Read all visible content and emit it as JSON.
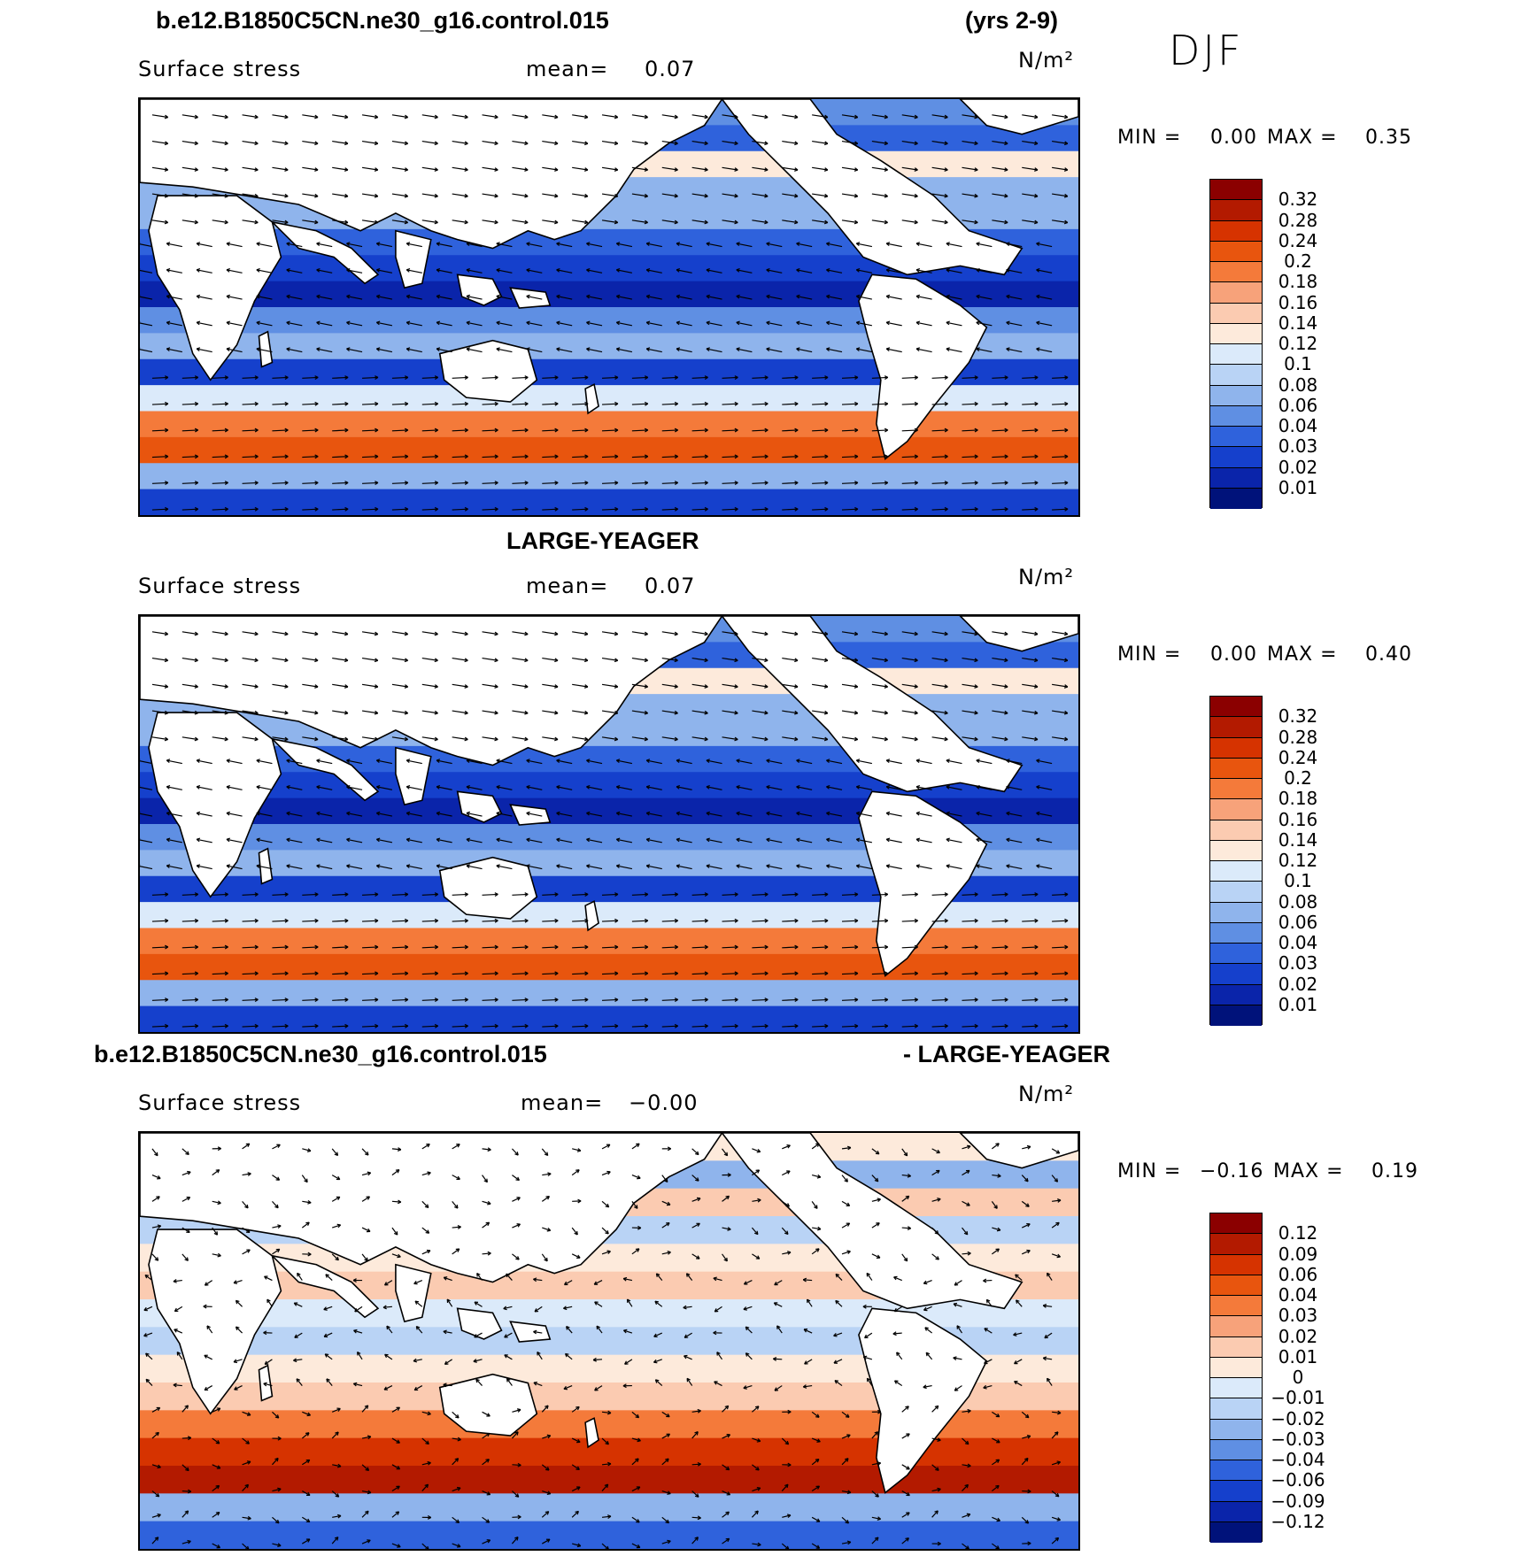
{
  "header": {
    "case_title": "b.e12.B1850C5CN.ne30_g16.control.015",
    "years": "(yrs 2-9)",
    "season": "DJF"
  },
  "panels": [
    {
      "title": "",
      "variable": "Surface stress",
      "mean_label": "mean=",
      "mean_value": "0.07",
      "units": "N/m²",
      "min_label": "MIN =",
      "min_value": "0.00",
      "max_label": "MAX =",
      "max_value": "0.35",
      "colorbar_ticks": [
        "0.32",
        "0.28",
        "0.24",
        "0.2",
        "0.18",
        "0.16",
        "0.14",
        "0.12",
        "0.1",
        "0.08",
        "0.06",
        "0.04",
        "0.03",
        "0.02",
        "0.01"
      ],
      "colorbar_colors": [
        "#8b0000",
        "#b31a00",
        "#d63300",
        "#e8550e",
        "#f47a3a",
        "#f7a27a",
        "#fbcbb1",
        "#fdeadb",
        "#dbeafa",
        "#b9d3f5",
        "#8fb4ec",
        "#5f8fe3",
        "#2f62dc",
        "#1540cc",
        "#0a24aa",
        "#00127a"
      ],
      "palette": "stress"
    },
    {
      "title": "LARGE-YEAGER",
      "variable": "Surface stress",
      "mean_label": "mean=",
      "mean_value": "0.07",
      "units": "N/m²",
      "min_label": "MIN =",
      "min_value": "0.00",
      "max_label": "MAX =",
      "max_value": "0.40",
      "colorbar_ticks": [
        "0.32",
        "0.28",
        "0.24",
        "0.2",
        "0.18",
        "0.16",
        "0.14",
        "0.12",
        "0.1",
        "0.08",
        "0.06",
        "0.04",
        "0.03",
        "0.02",
        "0.01"
      ],
      "colorbar_colors": [
        "#8b0000",
        "#b31a00",
        "#d63300",
        "#e8550e",
        "#f47a3a",
        "#f7a27a",
        "#fbcbb1",
        "#fdeadb",
        "#dbeafa",
        "#b9d3f5",
        "#8fb4ec",
        "#5f8fe3",
        "#2f62dc",
        "#1540cc",
        "#0a24aa",
        "#00127a"
      ],
      "palette": "stress"
    },
    {
      "title_left": "b.e12.B1850C5CN.ne30_g16.control.015",
      "title_right": "- LARGE-YEAGER",
      "variable": "Surface stress",
      "mean_label": "mean=",
      "mean_value": "−0.00",
      "units": "N/m²",
      "min_label": "MIN =",
      "min_value": "−0.16",
      "max_label": "MAX =",
      "max_value": "0.19",
      "colorbar_ticks": [
        "0.12",
        "0.09",
        "0.06",
        "0.04",
        "0.03",
        "0.02",
        "0.01",
        "0",
        "−0.01",
        "−0.02",
        "−0.03",
        "−0.04",
        "−0.06",
        "−0.09",
        "−0.12"
      ],
      "colorbar_colors": [
        "#8b0000",
        "#b31a00",
        "#d63300",
        "#e8550e",
        "#f47a3a",
        "#f7a27a",
        "#fbcbb1",
        "#fdeadb",
        "#dbeafa",
        "#b9d3f5",
        "#8fb4ec",
        "#5f8fe3",
        "#2f62dc",
        "#1540cc",
        "#0a24aa",
        "#00127a"
      ],
      "palette": "diff"
    }
  ]
}
